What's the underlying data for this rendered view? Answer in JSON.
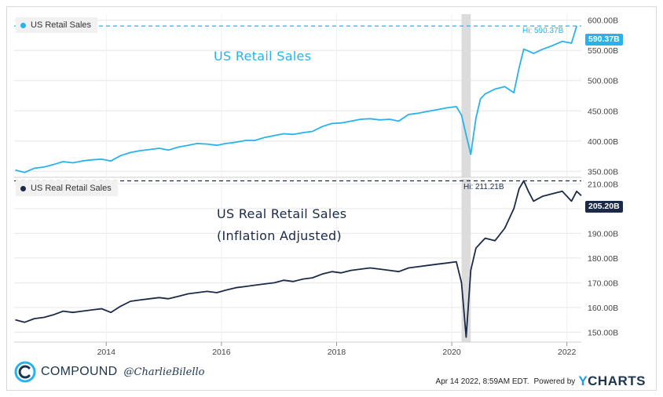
{
  "colors": {
    "retail": "#27b3ea",
    "real": "#1b2a48",
    "recession": "#dcdcdc",
    "grid": "#e6e6e6"
  },
  "panels": {
    "top": {
      "legend": "US Retail Sales",
      "annotation": "US Retail Sales",
      "hi_label": "Hi: 590.37B",
      "last_value": "590.37B"
    },
    "bottom": {
      "legend": "US Real Retail Sales",
      "annotation_line1": "US Real Retail Sales",
      "annotation_line2": "(Inflation Adjusted)",
      "hi_label": "Hi: 211.21B",
      "last_value": "205.20B"
    }
  },
  "footer": {
    "brand": "COMPOUND",
    "handle": "@CharlieBilello",
    "timestamp": "Apr 14 2022, 8:59AM EDT.",
    "powered_by": "Powered by",
    "ycharts_y": "Y",
    "ycharts_rest": "CHARTS"
  },
  "chart_data": [
    {
      "type": "line",
      "title": "US Retail Sales",
      "x_ticks": [
        "2014",
        "2016",
        "2018",
        "2020",
        "2022"
      ],
      "y_ticks": [
        "350.00B",
        "400.00B",
        "450.00B",
        "500.00B",
        "550.00B",
        "600.00B"
      ],
      "ylim": [
        340,
        610
      ],
      "xlim": [
        2012.4,
        2022.25
      ],
      "recession_band": [
        2020.17,
        2020.33
      ],
      "high": 590.37,
      "last": 590.37,
      "series": [
        {
          "name": "US Retail Sales",
          "x": [
            2012.42,
            2012.58,
            2012.75,
            2012.92,
            2013.08,
            2013.25,
            2013.42,
            2013.58,
            2013.75,
            2013.92,
            2014.08,
            2014.25,
            2014.42,
            2014.58,
            2014.75,
            2014.92,
            2015.08,
            2015.25,
            2015.42,
            2015.58,
            2015.75,
            2015.92,
            2016.08,
            2016.25,
            2016.42,
            2016.58,
            2016.75,
            2016.92,
            2017.08,
            2017.25,
            2017.42,
            2017.58,
            2017.75,
            2017.92,
            2018.08,
            2018.25,
            2018.42,
            2018.58,
            2018.75,
            2018.92,
            2019.08,
            2019.25,
            2019.42,
            2019.58,
            2019.75,
            2019.92,
            2020.08,
            2020.17,
            2020.25,
            2020.33,
            2020.42,
            2020.5,
            2020.58,
            2020.75,
            2020.92,
            2021.08,
            2021.17,
            2021.25,
            2021.33,
            2021.42,
            2021.58,
            2021.75,
            2021.92,
            2022.08,
            2022.17
          ],
          "y": [
            352,
            348,
            355,
            357,
            361,
            366,
            364,
            367,
            369,
            370,
            367,
            376,
            381,
            384,
            386,
            388,
            385,
            390,
            393,
            396,
            395,
            393,
            396,
            398,
            401,
            401,
            406,
            409,
            412,
            411,
            414,
            416,
            424,
            429,
            430,
            433,
            436,
            437,
            435,
            436,
            433,
            444,
            446,
            449,
            452,
            455,
            457,
            443,
            410,
            378,
            438,
            470,
            478,
            486,
            490,
            480,
            521,
            552,
            549,
            545,
            552,
            558,
            565,
            562,
            590.37
          ]
        }
      ]
    },
    {
      "type": "line",
      "title": "US Real Retail Sales (Inflation Adjusted)",
      "x_ticks": [
        "2014",
        "2016",
        "2018",
        "2020",
        "2022"
      ],
      "y_ticks": [
        "150.00B",
        "160.00B",
        "170.00B",
        "180.00B",
        "190.00B",
        "200.00B",
        "210.00B"
      ],
      "ylim": [
        146,
        212
      ],
      "xlim": [
        2012.4,
        2022.25
      ],
      "recession_band": [
        2020.17,
        2020.33
      ],
      "high": 211.21,
      "last": 205.2,
      "series": [
        {
          "name": "US Real Retail Sales",
          "x": [
            2012.42,
            2012.58,
            2012.75,
            2012.92,
            2013.08,
            2013.25,
            2013.42,
            2013.58,
            2013.75,
            2013.92,
            2014.08,
            2014.25,
            2014.42,
            2014.58,
            2014.75,
            2014.92,
            2015.08,
            2015.25,
            2015.42,
            2015.58,
            2015.75,
            2015.92,
            2016.08,
            2016.25,
            2016.42,
            2016.58,
            2016.75,
            2016.92,
            2017.08,
            2017.25,
            2017.42,
            2017.58,
            2017.75,
            2017.92,
            2018.08,
            2018.25,
            2018.42,
            2018.58,
            2018.75,
            2018.92,
            2019.08,
            2019.25,
            2019.42,
            2019.58,
            2019.75,
            2019.92,
            2020.08,
            2020.17,
            2020.25,
            2020.33,
            2020.42,
            2020.5,
            2020.58,
            2020.75,
            2020.92,
            2021.08,
            2021.17,
            2021.25,
            2021.33,
            2021.42,
            2021.58,
            2021.75,
            2021.92,
            2022.08,
            2022.17,
            2022.25
          ],
          "y": [
            155,
            154,
            155.5,
            156,
            157,
            158.5,
            158,
            158.5,
            159,
            159.5,
            158,
            160.5,
            162.5,
            163,
            163.5,
            164,
            163.5,
            164.5,
            165.5,
            166,
            166.5,
            166,
            167,
            168,
            168.5,
            169,
            169.5,
            170,
            171,
            170.5,
            171.5,
            172,
            173.5,
            174.5,
            174,
            175,
            175.5,
            176,
            175.5,
            175,
            174.5,
            176,
            176.5,
            177,
            177.5,
            178,
            178.5,
            170,
            148,
            175,
            184,
            186,
            188,
            187,
            192,
            200,
            208,
            211.21,
            207,
            203,
            205,
            206,
            207,
            203,
            207,
            205.2
          ]
        }
      ]
    }
  ]
}
